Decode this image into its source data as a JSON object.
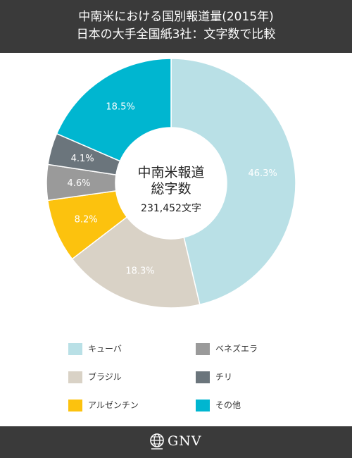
{
  "header": {
    "title_line1": "中南米における国別報道量(2015年)",
    "title_line2": "日本の大手全国紙3社：文字数で比較"
  },
  "chart_data": {
    "type": "pie",
    "center_title_line1": "中南米報道",
    "center_title_line2": "総字数",
    "center_total": "231,452文字",
    "slices": [
      {
        "label": "キューバ",
        "value": 46.3,
        "display": "46.3%",
        "color": "#b9e0e6"
      },
      {
        "label": "ブラジル",
        "value": 18.3,
        "display": "18.3%",
        "color": "#d9d2c6"
      },
      {
        "label": "アルゼンチン",
        "value": 8.2,
        "display": "8.2%",
        "color": "#fcc20e"
      },
      {
        "label": "ベネズエラ",
        "value": 4.6,
        "display": "4.6%",
        "color": "#9a9a9a"
      },
      {
        "label": "チリ",
        "value": 4.1,
        "display": "4.1%",
        "color": "#6b757c"
      },
      {
        "label": "その他",
        "value": 18.5,
        "display": "18.5%",
        "color": "#00b6d0"
      }
    ]
  },
  "footer": {
    "logo_text": "GNV",
    "logo_icon": "globe-icon"
  }
}
